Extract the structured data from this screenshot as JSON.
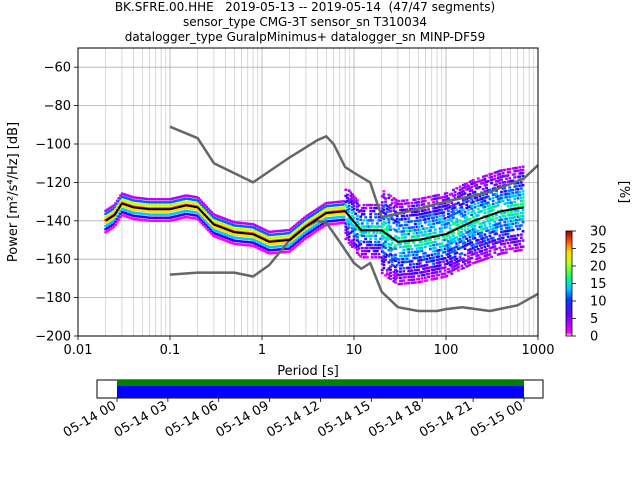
{
  "title": {
    "line1": "BK.SFRE.00.HHE   2019-05-13 -- 2019-05-14  (47/47 segments)",
    "line2": "sensor_type CMG-3T sensor_sn T310034",
    "line3": "datalogger_type GuralpMinimus+ datalogger_sn MINP-DF59"
  },
  "chart_data": {
    "type": "line",
    "xlabel": "Period [s]",
    "ylabel": "Power [m²/s⁴/Hz] [dB]",
    "xscale": "log",
    "xlim": [
      0.01,
      1000
    ],
    "ylim": [
      -200,
      -50
    ],
    "grid": true,
    "x_tick_labels": [
      "0.01",
      "0.1",
      "1",
      "10",
      "100",
      "1000"
    ],
    "x_tick_values": [
      0.01,
      0.1,
      1,
      10,
      100,
      1000
    ],
    "y_tick_values": [
      -200,
      -180,
      -160,
      -140,
      -120,
      -100,
      -80,
      -60
    ],
    "y_tick_labels": [
      "−200",
      "−180",
      "−160",
      "−140",
      "−120",
      "−100",
      "−80",
      "−60"
    ],
    "series": [
      {
        "color": "#666666",
        "period": [
          0.1,
          0.2,
          0.3,
          0.8,
          2,
          4,
          5,
          6,
          8,
          10,
          15,
          20,
          40,
          100,
          300,
          700,
          1000
        ],
        "power": [
          -91,
          -97,
          -110,
          -120,
          -107,
          -98,
          -96,
          -100,
          -112,
          -115,
          -120,
          -138,
          -135,
          -130,
          -125,
          -118,
          -111
        ]
      },
      {
        "color": "#666666",
        "period": [
          0.1,
          0.2,
          0.5,
          0.8,
          1.2,
          2,
          3,
          4,
          5,
          7,
          10,
          12,
          15,
          20,
          30,
          50,
          80,
          100,
          150,
          300,
          600,
          1000
        ],
        "power": [
          -168,
          -167,
          -167,
          -169,
          -163,
          -150,
          -143,
          -140,
          -141,
          -151,
          -162,
          -165,
          -162,
          -177,
          -185,
          -187,
          -187,
          -186,
          -185,
          -187,
          -184,
          -178
        ]
      },
      {
        "color": "#000000",
        "period": [
          0.02,
          0.025,
          0.03,
          0.04,
          0.06,
          0.1,
          0.15,
          0.2,
          0.3,
          0.5,
          0.8,
          1.2,
          2,
          3,
          5,
          8,
          12,
          20,
          30,
          50,
          100,
          200,
          400,
          700
        ],
        "power": [
          -140,
          -137,
          -131,
          -133,
          -134,
          -134,
          -132,
          -133,
          -142,
          -146,
          -147,
          -151,
          -150,
          -143,
          -136,
          -135,
          -145,
          -145,
          -151,
          -150,
          -147,
          -140,
          -135,
          -133
        ]
      }
    ],
    "density_colorbar": {
      "label": "[%]",
      "range": [
        0,
        30
      ],
      "tick_values": [
        0,
        5,
        10,
        15,
        20,
        25,
        30
      ],
      "tick_labels": [
        "0",
        "5",
        "10",
        "15",
        "20",
        "25",
        "30"
      ]
    },
    "timeline": {
      "tick_labels": [
        "05-14 00",
        "05-14 03",
        "05-14 06",
        "05-14 09",
        "05-14 12",
        "05-14 15",
        "05-14 18",
        "05-14 21",
        "05-15 00"
      ],
      "coverage_color_top": "#008000",
      "coverage_color_bottom": "#0000ff"
    }
  }
}
